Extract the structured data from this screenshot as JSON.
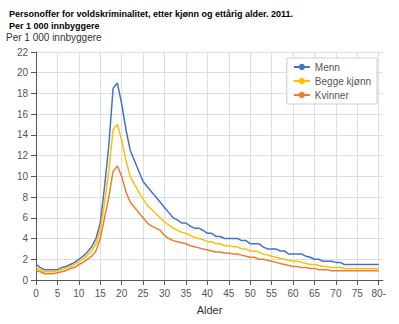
{
  "chart_data": {
    "type": "line",
    "title": "Personoffer for voldskriminalitet, etter kjønn og ettårig alder. 2011.",
    "subtitle": "Per 1 000 innbyggere",
    "ylabel": "Per 1 000 innbyggere",
    "xlabel": "Alder",
    "x": [
      0,
      1,
      2,
      3,
      4,
      5,
      6,
      7,
      8,
      9,
      10,
      11,
      12,
      13,
      14,
      15,
      16,
      17,
      18,
      19,
      20,
      21,
      22,
      23,
      24,
      25,
      26,
      27,
      28,
      29,
      30,
      31,
      32,
      33,
      34,
      35,
      36,
      37,
      38,
      39,
      40,
      41,
      42,
      43,
      44,
      45,
      46,
      47,
      48,
      49,
      50,
      51,
      52,
      53,
      54,
      55,
      56,
      57,
      58,
      59,
      60,
      61,
      62,
      63,
      64,
      65,
      66,
      67,
      68,
      69,
      70,
      71,
      72,
      73,
      74,
      75,
      76,
      77,
      78,
      79,
      80
    ],
    "series": [
      {
        "name": "Menn",
        "color": "#4472C4",
        "values": [
          1.5,
          1.2,
          1.0,
          1.0,
          1.0,
          1.0,
          1.2,
          1.3,
          1.5,
          1.7,
          2.0,
          2.3,
          2.7,
          3.2,
          4.0,
          5.5,
          9.0,
          13.0,
          18.5,
          19.0,
          17.0,
          14.5,
          12.5,
          11.5,
          10.5,
          9.5,
          9.0,
          8.5,
          8.0,
          7.5,
          7.0,
          6.5,
          6.0,
          5.8,
          5.5,
          5.5,
          5.2,
          5.0,
          5.0,
          4.8,
          4.5,
          4.5,
          4.2,
          4.2,
          4.0,
          4.0,
          4.0,
          4.0,
          3.8,
          3.8,
          3.5,
          3.5,
          3.5,
          3.2,
          3.0,
          3.0,
          3.0,
          2.8,
          2.8,
          2.5,
          2.5,
          2.5,
          2.5,
          2.3,
          2.2,
          2.0,
          2.0,
          1.8,
          1.8,
          1.8,
          1.7,
          1.7,
          1.5,
          1.5,
          1.5,
          1.5,
          1.5,
          1.5,
          1.5,
          1.5,
          1.5
        ]
      },
      {
        "name": "Begge kjønn",
        "color": "#FFC000",
        "values": [
          1.2,
          1.0,
          0.8,
          0.8,
          0.8,
          0.9,
          1.0,
          1.1,
          1.3,
          1.5,
          1.8,
          2.0,
          2.4,
          2.8,
          3.5,
          4.8,
          7.5,
          10.5,
          14.5,
          15.0,
          13.5,
          11.5,
          10.0,
          9.2,
          8.5,
          7.8,
          7.2,
          6.8,
          6.4,
          6.0,
          5.6,
          5.3,
          5.0,
          4.8,
          4.6,
          4.5,
          4.3,
          4.1,
          4.0,
          3.9,
          3.7,
          3.7,
          3.5,
          3.5,
          3.3,
          3.3,
          3.2,
          3.2,
          3.0,
          3.0,
          2.8,
          2.8,
          2.7,
          2.5,
          2.4,
          2.3,
          2.2,
          2.1,
          2.0,
          1.9,
          1.8,
          1.8,
          1.7,
          1.6,
          1.5,
          1.5,
          1.4,
          1.3,
          1.3,
          1.2,
          1.2,
          1.2,
          1.1,
          1.1,
          1.1,
          1.1,
          1.1,
          1.1,
          1.1,
          1.1,
          1.1
        ]
      },
      {
        "name": "Kvinner",
        "color": "#ED7D31",
        "values": [
          0.9,
          0.8,
          0.6,
          0.6,
          0.6,
          0.7,
          0.8,
          0.9,
          1.1,
          1.2,
          1.5,
          1.7,
          2.0,
          2.3,
          2.8,
          4.0,
          6.0,
          8.0,
          10.5,
          11.0,
          10.0,
          8.5,
          7.5,
          7.0,
          6.5,
          6.0,
          5.5,
          5.2,
          5.0,
          4.8,
          4.3,
          4.0,
          3.8,
          3.7,
          3.6,
          3.5,
          3.3,
          3.2,
          3.1,
          3.0,
          2.9,
          2.8,
          2.7,
          2.7,
          2.6,
          2.6,
          2.5,
          2.5,
          2.4,
          2.3,
          2.2,
          2.2,
          2.0,
          2.0,
          1.9,
          1.8,
          1.7,
          1.6,
          1.5,
          1.4,
          1.3,
          1.3,
          1.2,
          1.2,
          1.1,
          1.1,
          1.0,
          1.0,
          1.0,
          0.9,
          0.9,
          0.9,
          0.9,
          0.9,
          0.9,
          0.9,
          0.9,
          0.9,
          0.9,
          0.9,
          0.9
        ]
      }
    ],
    "xlim": [
      0,
      81
    ],
    "xticks": [
      0,
      5,
      10,
      15,
      20,
      25,
      30,
      35,
      40,
      45,
      50,
      55,
      60,
      65,
      70,
      75,
      {
        "value": 80,
        "label": "80-"
      }
    ],
    "ylim": [
      0,
      22
    ],
    "yticks": [
      0,
      2,
      4,
      6,
      8,
      10,
      12,
      14,
      16,
      18,
      20,
      22
    ],
    "grid": true,
    "legend": "upper right"
  }
}
